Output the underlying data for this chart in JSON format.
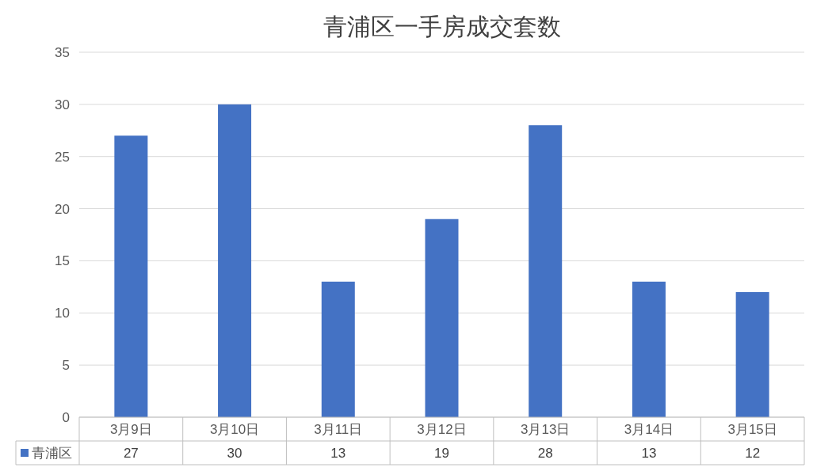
{
  "chart_data": {
    "type": "bar",
    "title": "青浦区一手房成交套数",
    "categories": [
      "3月9日",
      "3月10日",
      "3月11日",
      "3月12日",
      "3月13日",
      "3月14日",
      "3月15日"
    ],
    "series": [
      {
        "name": "青浦区",
        "color": "#4472c4",
        "values": [
          27,
          30,
          13,
          19,
          28,
          13,
          12
        ]
      }
    ],
    "ylim": [
      0,
      35
    ],
    "yticks": [
      0,
      5,
      10,
      15,
      20,
      25,
      30,
      35
    ],
    "grid": "y",
    "data_labels": true,
    "legend": "bottom"
  }
}
